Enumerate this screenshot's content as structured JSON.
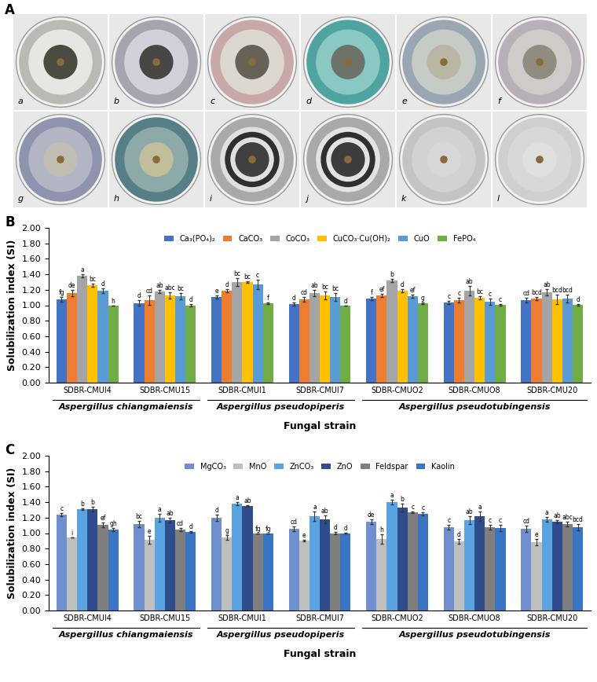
{
  "panel_A": {
    "label": "A",
    "images": [
      "a",
      "b",
      "c",
      "d",
      "e",
      "f",
      "g",
      "h",
      "i",
      "j",
      "k",
      "l"
    ]
  },
  "chart_data": [
    {
      "type": "bar",
      "panel_label": "B",
      "categories": [
        "SDBR-CMUI4",
        "SDBR-CMU15",
        "SDBR-CMUI1",
        "SDBR-CMUI7",
        "SDBR-CMUO2",
        "SDBR-CMUO8",
        "SDBR-CMU20"
      ],
      "groups": [
        {
          "name": "Aspergillus chiangmaiensis",
          "members": [
            "SDBR-CMUI4",
            "SDBR-CMU15"
          ]
        },
        {
          "name": "Aspergillus pseudopiperis",
          "members": [
            "SDBR-CMUI1",
            "SDBR-CMUI7"
          ]
        },
        {
          "name": "Aspergillus pseudotubingensis",
          "members": [
            "SDBR-CMUO2",
            "SDBR-CMUO8",
            "SDBR-CMU20"
          ]
        }
      ],
      "x_label": "Fungal strain",
      "y_label": "Solubilization index (SI)",
      "ylim": [
        0,
        2.0
      ],
      "yticks": [
        {
          "value": 0.0,
          "label": "0.00"
        },
        {
          "value": 0.2,
          "label": "0.20"
        },
        {
          "value": 0.4,
          "label": "0.40"
        },
        {
          "value": 0.6,
          "label": "0.60"
        },
        {
          "value": 0.8,
          "label": "0.80"
        },
        {
          "value": 1.0,
          "label": "1.00"
        },
        {
          "value": 1.2,
          "label": "1.20"
        },
        {
          "value": 1.4,
          "label": "1.40"
        },
        {
          "value": 1.6,
          "label": "1.60"
        },
        {
          "value": 1.8,
          "label": "1.80"
        },
        {
          "value": 2.0,
          "label": "2.00"
        }
      ],
      "legend": "upper center",
      "series": [
        {
          "name": "Ca₃(PO₄)₂",
          "color": "#4472c4",
          "values": [
            1.08,
            1.03,
            1.11,
            1.02,
            1.09,
            1.04,
            1.07
          ],
          "errors": [
            0.03,
            0.04,
            0.02,
            0.02,
            0.02,
            0.02,
            0.03
          ],
          "letters": [
            "fg",
            "d",
            "e",
            "d",
            "f",
            "c",
            "cd"
          ]
        },
        {
          "name": "CaCO₃",
          "color": "#ed7d31",
          "values": [
            1.16,
            1.07,
            1.19,
            1.08,
            1.13,
            1.07,
            1.09
          ],
          "errors": [
            0.04,
            0.06,
            0.02,
            0.03,
            0.02,
            0.03,
            0.02
          ],
          "letters": [
            "de",
            "cd",
            "d",
            "cd",
            "ef",
            "c",
            "bcd"
          ]
        },
        {
          "name": "CoCO₃",
          "color": "#a5a5a5",
          "values": [
            1.38,
            1.18,
            1.3,
            1.16,
            1.32,
            1.19,
            1.17
          ],
          "errors": [
            0.02,
            0.02,
            0.05,
            0.04,
            0.02,
            0.06,
            0.04
          ],
          "letters": [
            "a",
            "ab",
            "bc",
            "ab",
            "b",
            "ab",
            "ab"
          ]
        },
        {
          "name": "CuCO₃·Cu(OH)₂",
          "color": "#ffc000",
          "values": [
            1.26,
            1.13,
            1.3,
            1.13,
            1.19,
            1.1,
            1.08
          ],
          "errors": [
            0.02,
            0.04,
            0.01,
            0.05,
            0.02,
            0.02,
            0.06
          ],
          "letters": [
            "bc",
            "abc",
            "bc",
            "bc",
            "d",
            "bc",
            "bcd"
          ]
        },
        {
          "name": "CuO",
          "color": "#5b9bd5",
          "values": [
            1.19,
            1.12,
            1.27,
            1.11,
            1.12,
            1.05,
            1.09
          ],
          "errors": [
            0.03,
            0.04,
            0.06,
            0.05,
            0.02,
            0.04,
            0.05
          ],
          "letters": [
            "d",
            "bc",
            "c",
            "bc",
            "ef",
            "c",
            "bcd"
          ]
        },
        {
          "name": "FePO₄",
          "color": "#70ad47",
          "values": [
            1.0,
            1.0,
            1.03,
            1.0,
            1.03,
            1.01,
            1.01
          ],
          "errors": [
            0.0,
            0.02,
            0.01,
            0.0,
            0.01,
            0.01,
            0.01
          ],
          "letters": [
            "h",
            "d",
            "f",
            "d",
            "g",
            "c",
            "d"
          ]
        }
      ]
    },
    {
      "type": "bar",
      "panel_label": "C",
      "categories": [
        "SDBR-CMUI4",
        "SDBR-CMU15",
        "SDBR-CMUI1",
        "SDBR-CMUI7",
        "SDBR-CMUO2",
        "SDBR-CMUO8",
        "SDBR-CMU20"
      ],
      "groups": [
        {
          "name": "Aspergillus chiangmaiensis",
          "members": [
            "SDBR-CMUI4",
            "SDBR-CMU15"
          ]
        },
        {
          "name": "Aspergillus pseudopiperis",
          "members": [
            "SDBR-CMUI1",
            "SDBR-CMUI7"
          ]
        },
        {
          "name": "Aspergillus pseudotubingensis",
          "members": [
            "SDBR-CMUO2",
            "SDBR-CMUO8",
            "SDBR-CMU20"
          ]
        }
      ],
      "x_label": "Fungal strain",
      "y_label": "Solubilization index (SI)",
      "ylim": [
        0,
        2.0
      ],
      "yticks": [
        {
          "value": 0.0,
          "label": "0.00"
        },
        {
          "value": 0.2,
          "label": "0.20"
        },
        {
          "value": 0.4,
          "label": "0.40"
        },
        {
          "value": 0.6,
          "label": "0.60"
        },
        {
          "value": 0.8,
          "label": "0.80"
        },
        {
          "value": 1.0,
          "label": "1.00"
        },
        {
          "value": 1.2,
          "label": "1.20"
        },
        {
          "value": 1.4,
          "label": "1.40"
        },
        {
          "value": 1.6,
          "label": "1.60"
        },
        {
          "value": 1.8,
          "label": "1.80"
        },
        {
          "value": 2.0,
          "label": "2.00"
        }
      ],
      "legend": "upper center",
      "series": [
        {
          "name": "MgCO₃",
          "color": "#6f8fcf",
          "values": [
            1.24,
            1.12,
            1.2,
            1.06,
            1.15,
            1.08,
            1.06
          ],
          "errors": [
            0.02,
            0.04,
            0.04,
            0.03,
            0.03,
            0.03,
            0.04
          ],
          "letters": [
            "c",
            "bc",
            "d",
            "cd",
            "de",
            "c",
            "cd"
          ]
        },
        {
          "name": "MnO",
          "color": "#bfbfbf",
          "values": [
            0.94,
            0.91,
            0.94,
            0.9,
            0.92,
            0.89,
            0.88
          ],
          "errors": [
            0.0,
            0.05,
            0.03,
            0.01,
            0.06,
            0.03,
            0.04
          ],
          "letters": [
            "i",
            "e",
            "g",
            "e",
            "h",
            "d",
            "e"
          ]
        },
        {
          "name": "ZnCO₃",
          "color": "#5ba3e0",
          "values": [
            1.31,
            1.2,
            1.38,
            1.22,
            1.4,
            1.17,
            1.18
          ],
          "errors": [
            0.01,
            0.05,
            0.02,
            0.06,
            0.03,
            0.05,
            0.03
          ],
          "letters": [
            "b",
            "a",
            "a",
            "a",
            "a",
            "ab",
            "a"
          ]
        },
        {
          "name": "ZnO",
          "color": "#2f4c8c",
          "values": [
            1.31,
            1.17,
            1.35,
            1.18,
            1.33,
            1.22,
            1.15
          ],
          "errors": [
            0.03,
            0.03,
            0.01,
            0.05,
            0.05,
            0.06,
            0.02
          ],
          "letters": [
            "b",
            "ab",
            "ab",
            "ab",
            "b",
            "a",
            "ab"
          ]
        },
        {
          "name": "Feldspar",
          "color": "#7f7f7f",
          "values": [
            1.11,
            1.05,
            1.0,
            1.0,
            1.27,
            1.08,
            1.12
          ],
          "errors": [
            0.03,
            0.02,
            0.0,
            0.02,
            0.01,
            0.03,
            0.03
          ],
          "letters": [
            "ef",
            "cd",
            "fg",
            "d",
            "c",
            "c",
            "abc"
          ]
        },
        {
          "name": "Kaolin",
          "color": "#3a75c4",
          "values": [
            1.05,
            1.02,
            1.0,
            1.0,
            1.25,
            1.07,
            1.08
          ],
          "errors": [
            0.02,
            0.01,
            0.0,
            0.01,
            0.02,
            0.04,
            0.04
          ],
          "letters": [
            "gh",
            "d",
            "fg",
            "d",
            "c",
            "c",
            "bcd"
          ]
        }
      ]
    }
  ]
}
